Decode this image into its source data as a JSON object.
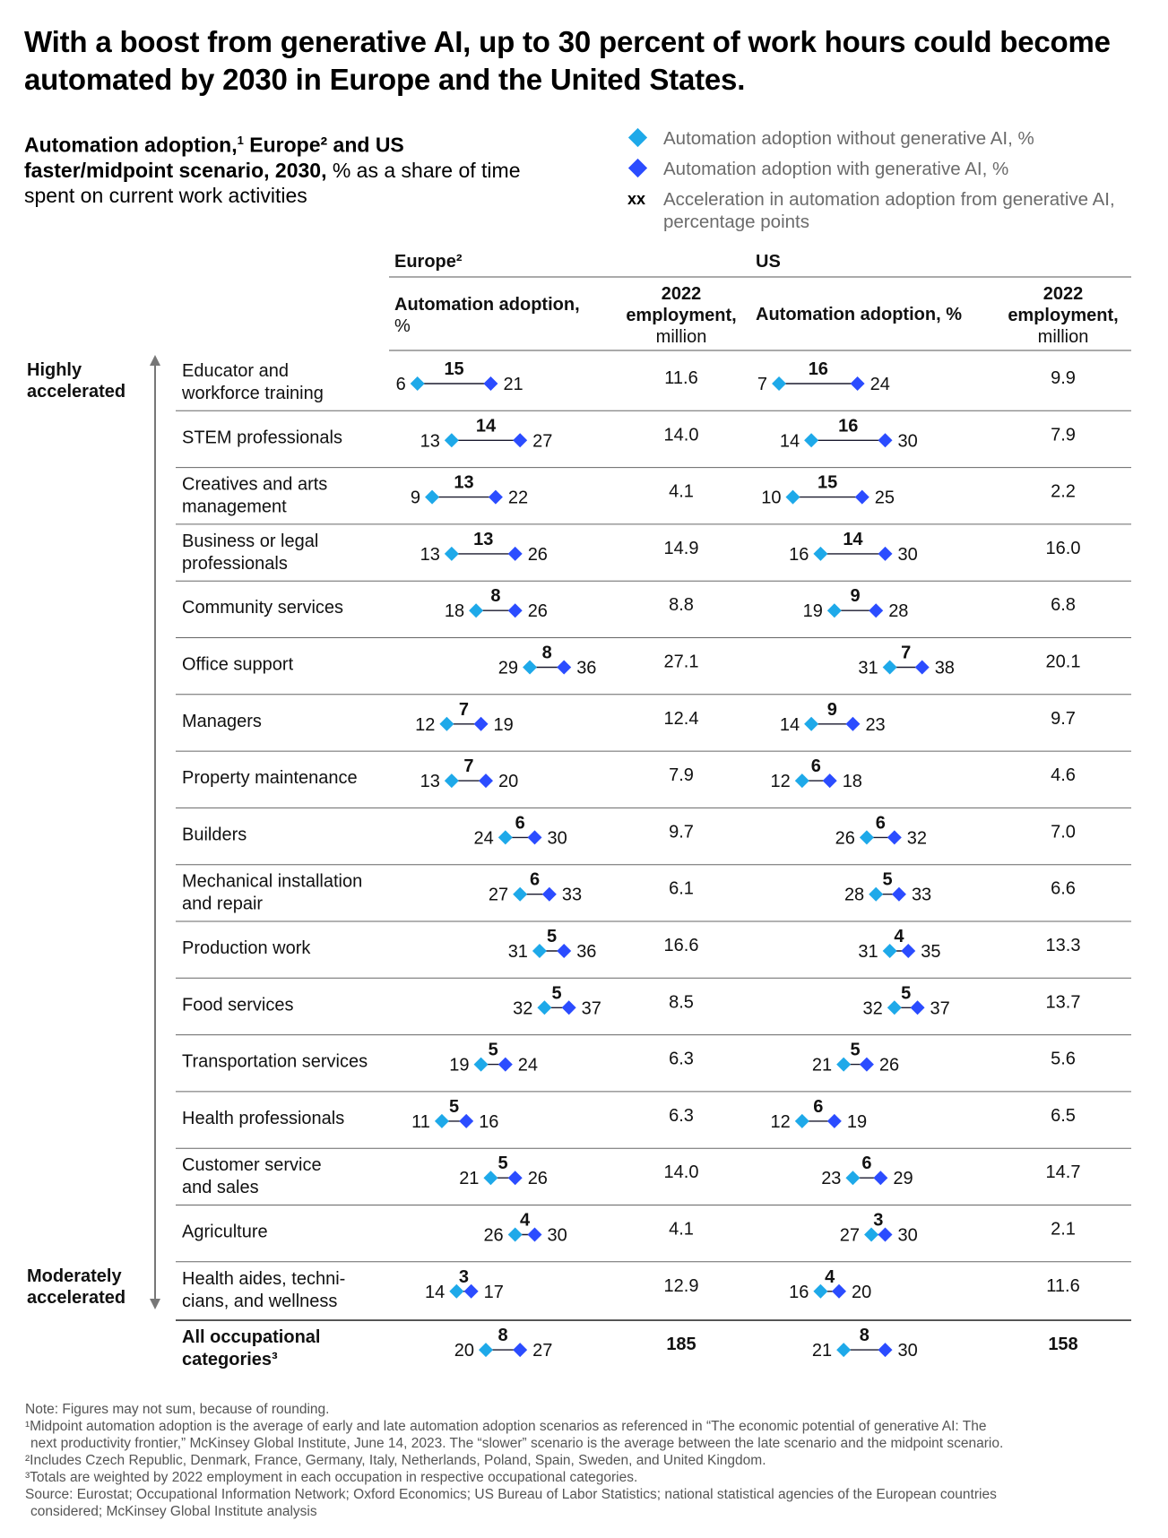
{
  "headline": "With a boost from generative AI, up to 30 percent of work hours could become automated by 2030 in Europe and the United States.",
  "subtitle": {
    "bold": "Automation adoption,",
    "sup1": "1",
    "bold2": " Europe² and US faster/midpoint scenario, 2030,",
    "normal": " % as a share of time spent on current work activities"
  },
  "legend": {
    "without": "Automation adoption without generative AI, %",
    "with": "Automation adoption with generative AI, %",
    "xx_symbol": "xx",
    "acceleration": "Acceleration in automation adoption from generative AI, percentage points"
  },
  "colors": {
    "without": "#1ea9e9",
    "with": "#2b4cff",
    "connector": "#1a1a2e",
    "rule": "#555555"
  },
  "regions": {
    "europe": "Europe²",
    "us": "US"
  },
  "columns": {
    "europe_adoption": [
      "Automation adoption,",
      "%"
    ],
    "us_adoption": "Automation adoption, %",
    "employment": [
      "2022",
      "employment,",
      "million"
    ]
  },
  "axis_labels": {
    "top": [
      "Highly",
      "accelerated"
    ],
    "bottom": [
      "Moderately",
      "accelerated"
    ]
  },
  "chart_data": {
    "type": "dumbbell",
    "series": [
      {
        "name": "Automation adoption without generative AI, %"
      },
      {
        "name": "Automation adoption with generative AI, %"
      }
    ],
    "rows": [
      {
        "label": [
          "Educator and",
          "workforce training"
        ],
        "eu": [
          6,
          21,
          15
        ],
        "eu_emp": "11.6",
        "us": [
          7,
          24,
          16
        ],
        "us_emp": "9.9"
      },
      {
        "label": [
          "STEM professionals"
        ],
        "eu": [
          13,
          27,
          14
        ],
        "eu_emp": "14.0",
        "us": [
          14,
          30,
          16
        ],
        "us_emp": "7.9"
      },
      {
        "label": [
          "Creatives and arts",
          "management"
        ],
        "eu": [
          9,
          22,
          13
        ],
        "eu_emp": "4.1",
        "us": [
          10,
          25,
          15
        ],
        "us_emp": "2.2"
      },
      {
        "label": [
          "Business or legal",
          "professionals"
        ],
        "eu": [
          13,
          26,
          13
        ],
        "eu_emp": "14.9",
        "us": [
          16,
          30,
          14
        ],
        "us_emp": "16.0"
      },
      {
        "label": [
          "Community services"
        ],
        "eu": [
          18,
          26,
          8
        ],
        "eu_emp": "8.8",
        "us": [
          19,
          28,
          9
        ],
        "us_emp": "6.8"
      },
      {
        "label": [
          "Office support"
        ],
        "eu": [
          29,
          36,
          8
        ],
        "eu_emp": "27.1",
        "us": [
          31,
          38,
          7
        ],
        "us_emp": "20.1"
      },
      {
        "label": [
          "Managers"
        ],
        "eu": [
          12,
          19,
          7
        ],
        "eu_emp": "12.4",
        "us": [
          14,
          23,
          9
        ],
        "us_emp": "9.7"
      },
      {
        "label": [
          "Property maintenance"
        ],
        "eu": [
          13,
          20,
          7
        ],
        "eu_emp": "7.9",
        "us": [
          12,
          18,
          6
        ],
        "us_emp": "4.6"
      },
      {
        "label": [
          "Builders"
        ],
        "eu": [
          24,
          30,
          6
        ],
        "eu_emp": "9.7",
        "us": [
          26,
          32,
          6
        ],
        "us_emp": "7.0"
      },
      {
        "label": [
          "Mechanical installation",
          "and repair"
        ],
        "eu": [
          27,
          33,
          6
        ],
        "eu_emp": "6.1",
        "us": [
          28,
          33,
          5
        ],
        "us_emp": "6.6"
      },
      {
        "label": [
          "Production work"
        ],
        "eu": [
          31,
          36,
          5
        ],
        "eu_emp": "16.6",
        "us": [
          31,
          35,
          4
        ],
        "us_emp": "13.3"
      },
      {
        "label": [
          "Food services"
        ],
        "eu": [
          32,
          37,
          5
        ],
        "eu_emp": "8.5",
        "us": [
          32,
          37,
          5
        ],
        "us_emp": "13.7"
      },
      {
        "label": [
          "Transportation services"
        ],
        "eu": [
          19,
          24,
          5
        ],
        "eu_emp": "6.3",
        "us": [
          21,
          26,
          5
        ],
        "us_emp": "5.6"
      },
      {
        "label": [
          "Health professionals"
        ],
        "eu": [
          11,
          16,
          5
        ],
        "eu_emp": "6.3",
        "us": [
          12,
          19,
          6
        ],
        "us_emp": "6.5"
      },
      {
        "label": [
          "Customer service",
          "and sales"
        ],
        "eu": [
          21,
          26,
          5
        ],
        "eu_emp": "14.0",
        "us": [
          23,
          29,
          6
        ],
        "us_emp": "14.7"
      },
      {
        "label": [
          "Agriculture"
        ],
        "eu": [
          26,
          30,
          4
        ],
        "eu_emp": "4.1",
        "us": [
          27,
          30,
          3
        ],
        "us_emp": "2.1"
      },
      {
        "label": [
          "Health aides, techni-",
          "cians, and wellness"
        ],
        "eu": [
          14,
          17,
          3
        ],
        "eu_emp": "12.9",
        "us": [
          16,
          20,
          4
        ],
        "us_emp": "11.6"
      },
      {
        "label": [
          "All occupational",
          "categories³"
        ],
        "eu": [
          20,
          27,
          8
        ],
        "eu_emp": "185",
        "us": [
          21,
          30,
          8
        ],
        "us_emp": "158",
        "total": true
      }
    ]
  },
  "notes": [
    "Note: Figures may not sum, because of rounding.",
    "¹Midpoint automation adoption is the average of early and late automation adoption scenarios as referenced in “The economic potential of generative AI: The",
    "next productivity frontier,” McKinsey Global Institute, June 14, 2023. The “slower” scenario is the average between the late scenario and the midpoint scenario.",
    "²Includes Czech Republic, Denmark, France, Germany, Italy, Netherlands, Poland, Spain, Sweden, and United Kingdom.",
    "³Totals are weighted by 2022 employment in each occupation in respective occupational categories.",
    "Source: Eurostat; Occupational Information Network; Oxford Economics; US Bureau of Labor Statistics; national statistical agencies of the European countries",
    "considered; McKinsey Global Institute analysis"
  ]
}
